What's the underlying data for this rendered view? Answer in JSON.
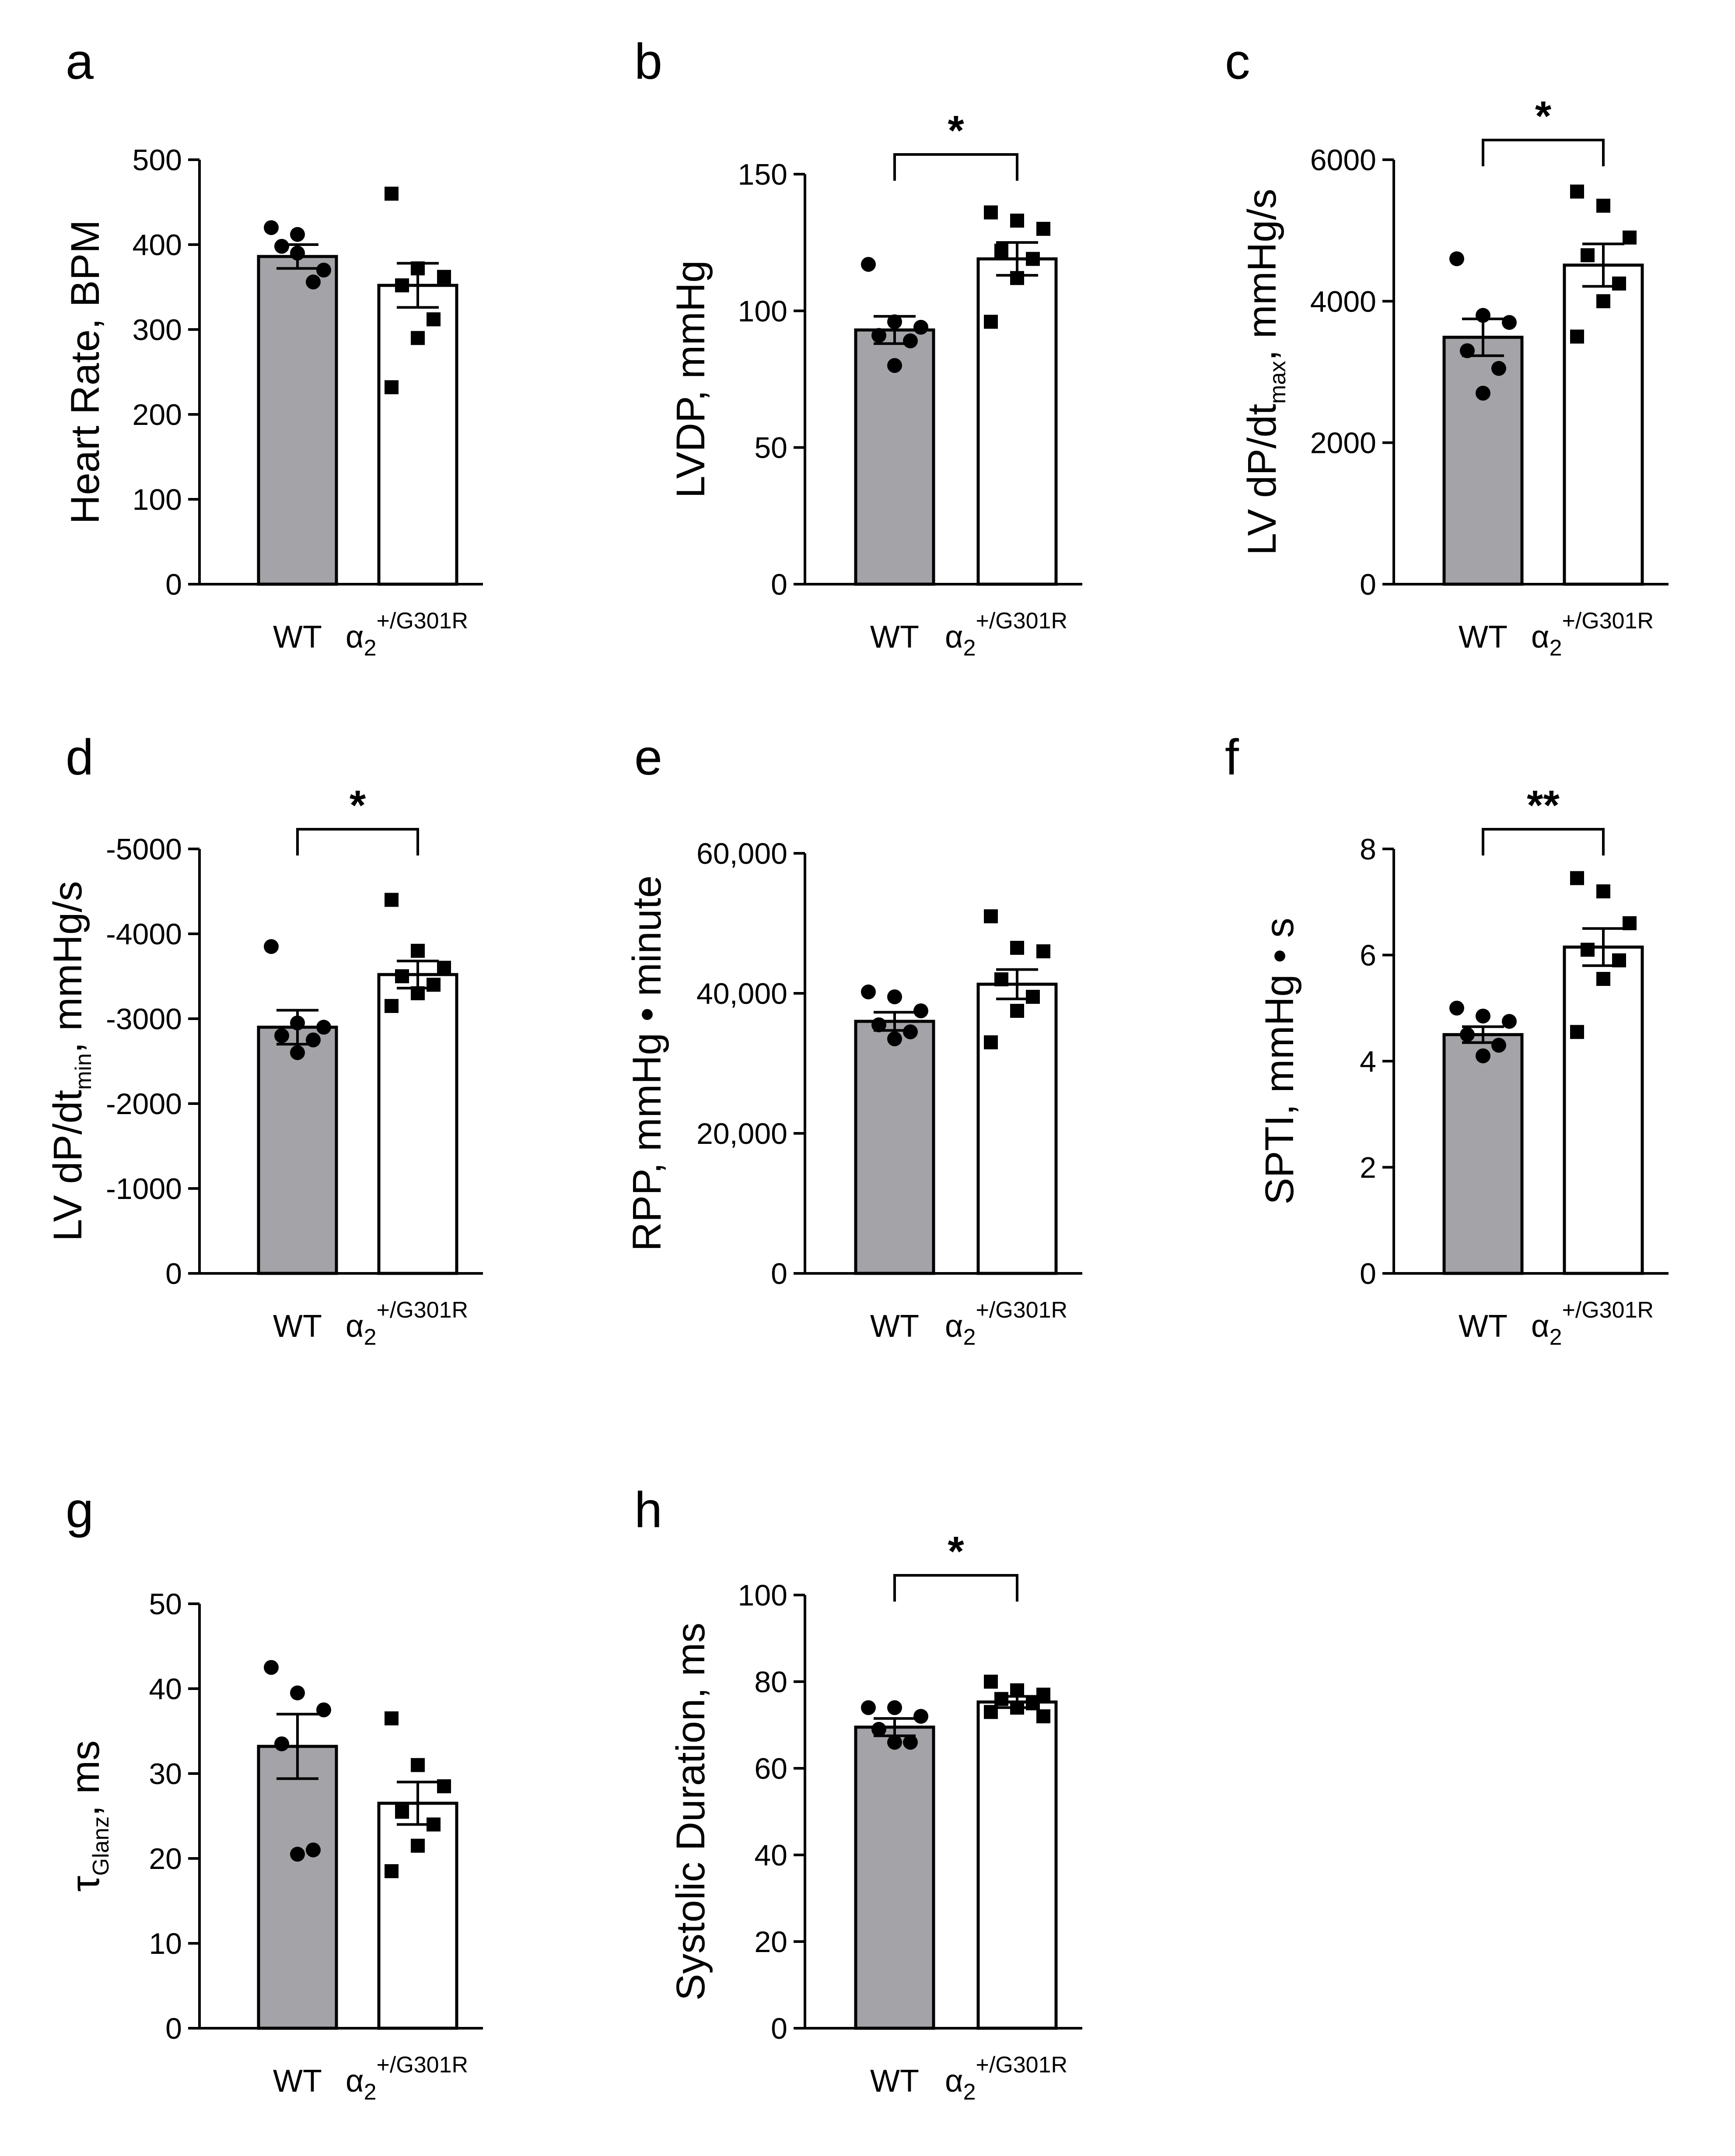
{
  "colors": {
    "wt_bar": "#a4a3a8",
    "mut_bar": "#ffffff",
    "stroke": "#000000"
  },
  "chart_data": [
    {
      "panel": "a",
      "type": "bar",
      "ylabel": "Heart  Rate, BPM",
      "ylim": [
        0,
        500
      ],
      "yticks": [
        0,
        100,
        200,
        300,
        400,
        500
      ],
      "ytick_labels": [
        "0",
        "100",
        "200",
        "300",
        "400",
        "500"
      ],
      "categories": [
        "WT",
        "α2+/G301R"
      ],
      "means": [
        386,
        352
      ],
      "sem": [
        14,
        26
      ],
      "points": [
        [
          420,
          412,
          370,
          398,
          356,
          390
        ],
        [
          460,
          372,
          362,
          352,
          312,
          290,
          232
        ]
      ],
      "significance": ""
    },
    {
      "panel": "b",
      "type": "bar",
      "ylabel": "LVDP, mmHg",
      "ylim": [
        0,
        150
      ],
      "yticks": [
        0,
        50,
        100,
        150
      ],
      "ytick_labels": [
        "0",
        "50",
        "100",
        "150"
      ],
      "categories": [
        "WT",
        "α2+/G301R"
      ],
      "means": [
        93,
        119
      ],
      "sem": [
        5,
        6
      ],
      "points": [
        [
          117,
          96,
          94,
          91,
          89,
          80
        ],
        [
          136,
          133,
          130,
          122,
          119,
          112,
          96
        ]
      ],
      "significance": "*"
    },
    {
      "panel": "c",
      "type": "bar",
      "ylabel": "LV dP/dtmax, mmHg/s",
      "ylim": [
        0,
        6000
      ],
      "yticks": [
        0,
        2000,
        4000,
        6000
      ],
      "ytick_labels": [
        "0",
        "2000",
        "4000",
        "6000"
      ],
      "categories": [
        "WT",
        "α2+/G301R"
      ],
      "means": [
        3490,
        4510
      ],
      "sem": [
        260,
        300
      ],
      "points": [
        [
          4600,
          3800,
          3700,
          3300,
          3050,
          2700
        ],
        [
          5550,
          5350,
          4900,
          4650,
          4250,
          4000,
          3500
        ]
      ],
      "significance": "*"
    },
    {
      "panel": "d",
      "type": "bar",
      "ylabel": "LV dP/dtmin, mmHg/s",
      "ylim": [
        0,
        -5000
      ],
      "yticks": [
        0,
        -1000,
        -2000,
        -3000,
        -4000,
        -5000
      ],
      "ytick_labels": [
        "0",
        "-1000",
        "-2000",
        "-3000",
        "-4000",
        "-5000"
      ],
      "categories": [
        "WT",
        "α2+/G301R"
      ],
      "means": [
        -2900,
        -3520
      ],
      "sem": [
        200,
        160
      ],
      "points": [
        [
          -3850,
          -2950,
          -2900,
          -2800,
          -2750,
          -2600
        ],
        [
          -4400,
          -3800,
          -3600,
          -3500,
          -3400,
          -3300,
          -3150
        ]
      ],
      "significance": "*"
    },
    {
      "panel": "e",
      "type": "bar",
      "ylabel": "RPP, mmHg • minute",
      "ylim": [
        0,
        60000
      ],
      "yticks": [
        0,
        20000,
        40000,
        60000
      ],
      "ytick_labels": [
        "0",
        "20,000",
        "40,000",
        "60,000"
      ],
      "categories": [
        "WT",
        "α2+/G301R"
      ],
      "means": [
        36000,
        41300
      ],
      "sem": [
        1300,
        2100
      ],
      "points": [
        [
          40200,
          39500,
          37500,
          35500,
          34500,
          33500
        ],
        [
          51000,
          46500,
          46000,
          42000,
          39500,
          37500,
          33000
        ]
      ],
      "significance": ""
    },
    {
      "panel": "f",
      "type": "bar",
      "ylabel": "SPTI, mmHg • s",
      "ylim": [
        0,
        8
      ],
      "yticks": [
        0,
        2,
        4,
        6,
        8
      ],
      "ytick_labels": [
        "0",
        "2",
        "4",
        "6",
        "8"
      ],
      "categories": [
        "WT",
        "α2+/G301R"
      ],
      "means": [
        4.5,
        6.15
      ],
      "sem": [
        0.15,
        0.35
      ],
      "points": [
        [
          5.0,
          4.85,
          4.75,
          4.5,
          4.3,
          4.1
        ],
        [
          7.45,
          7.2,
          6.6,
          6.1,
          5.9,
          5.55,
          4.55
        ]
      ],
      "significance": "**"
    },
    {
      "panel": "g",
      "type": "bar",
      "ylabel": "τGlanz, ms",
      "ylim": [
        0,
        50
      ],
      "yticks": [
        0,
        10,
        20,
        30,
        40,
        50
      ],
      "ytick_labels": [
        "0",
        "10",
        "20",
        "30",
        "40",
        "50"
      ],
      "categories": [
        "WT",
        "α2+/G301R"
      ],
      "means": [
        33.2,
        26.5
      ],
      "sem": [
        3.8,
        2.5
      ],
      "points": [
        [
          42.5,
          39.5,
          37.5,
          33.5,
          21,
          20.5
        ],
        [
          36.5,
          31,
          28.5,
          25.5,
          24,
          21.5,
          18.5
        ]
      ],
      "significance": ""
    },
    {
      "panel": "h",
      "type": "bar",
      "ylabel": "Systolic Duration, ms",
      "ylim": [
        0,
        100
      ],
      "yticks": [
        0,
        20,
        40,
        60,
        80,
        100
      ],
      "ytick_labels": [
        "0",
        "20",
        "40",
        "60",
        "80",
        "100"
      ],
      "categories": [
        "WT",
        "α2+/G301R"
      ],
      "means": [
        69.5,
        75.3
      ],
      "sem": [
        2,
        1.3
      ],
      "points": [
        [
          74,
          74,
          72,
          69,
          66,
          66
        ],
        [
          80,
          78,
          77,
          76,
          75,
          74,
          73,
          72
        ]
      ],
      "significance": "*"
    }
  ]
}
